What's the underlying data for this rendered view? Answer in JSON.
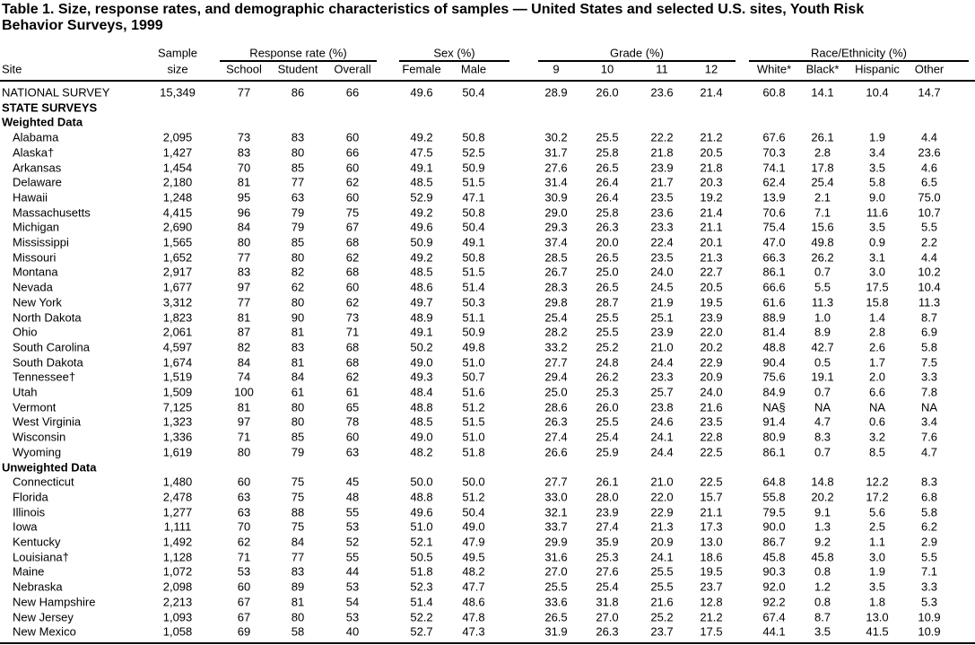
{
  "title": [
    "Table 1. Size, response rates, and demographic characteristics of samples — United States and selected U.S. sites, Youth Risk",
    "Behavior Surveys, 1999"
  ],
  "table": {
    "groups": [
      "Response rate (%)",
      "Sex (%)",
      "Grade (%)",
      "Race/Ethnicity (%)"
    ],
    "columns": [
      "Site",
      [
        "Sample",
        "size"
      ],
      "School",
      "Student",
      "Overall",
      "Female",
      "Male",
      "9",
      "10",
      "11",
      "12",
      "White*",
      "Black*",
      "Hispanic",
      "Other"
    ],
    "rows": [
      {
        "site": "NATIONAL SURVEY",
        "values": [
          "15,349",
          "77",
          "86",
          "66",
          "49.6",
          "50.4",
          "28.9",
          "26.0",
          "23.6",
          "21.4",
          "60.8",
          "14.1",
          "10.4",
          "14.7"
        ]
      },
      {
        "section": "STATE SURVEYS"
      },
      {
        "section": "Weighted Data"
      },
      {
        "site": "Alabama",
        "values": [
          "2,095",
          "73",
          "83",
          "60",
          "49.2",
          "50.8",
          "30.2",
          "25.5",
          "22.2",
          "21.2",
          "67.6",
          "26.1",
          "1.9",
          "4.4"
        ]
      },
      {
        "site": "Alaska†",
        "values": [
          "1,427",
          "83",
          "80",
          "66",
          "47.5",
          "52.5",
          "31.7",
          "25.8",
          "21.8",
          "20.5",
          "70.3",
          "2.8",
          "3.4",
          "23.6"
        ]
      },
      {
        "site": "Arkansas",
        "values": [
          "1,454",
          "70",
          "85",
          "60",
          "49.1",
          "50.9",
          "27.6",
          "26.5",
          "23.9",
          "21.8",
          "74.1",
          "17.8",
          "3.5",
          "4.6"
        ]
      },
      {
        "site": "Delaware",
        "values": [
          "2,180",
          "81",
          "77",
          "62",
          "48.5",
          "51.5",
          "31.4",
          "26.4",
          "21.7",
          "20.3",
          "62.4",
          "25.4",
          "5.8",
          "6.5"
        ]
      },
      {
        "site": "Hawaii",
        "values": [
          "1,248",
          "95",
          "63",
          "60",
          "52.9",
          "47.1",
          "30.9",
          "26.4",
          "23.5",
          "19.2",
          "13.9",
          "2.1",
          "9.0",
          "75.0"
        ]
      },
      {
        "site": "Massachusetts",
        "values": [
          "4,415",
          "96",
          "79",
          "75",
          "49.2",
          "50.8",
          "29.0",
          "25.8",
          "23.6",
          "21.4",
          "70.6",
          "7.1",
          "11.6",
          "10.7"
        ]
      },
      {
        "site": "Michigan",
        "values": [
          "2,690",
          "84",
          "79",
          "67",
          "49.6",
          "50.4",
          "29.3",
          "26.3",
          "23.3",
          "21.1",
          "75.4",
          "15.6",
          "3.5",
          "5.5"
        ]
      },
      {
        "site": "Mississippi",
        "values": [
          "1,565",
          "80",
          "85",
          "68",
          "50.9",
          "49.1",
          "37.4",
          "20.0",
          "22.4",
          "20.1",
          "47.0",
          "49.8",
          "0.9",
          "2.2"
        ]
      },
      {
        "site": "Missouri",
        "values": [
          "1,652",
          "77",
          "80",
          "62",
          "49.2",
          "50.8",
          "28.5",
          "26.5",
          "23.5",
          "21.3",
          "66.3",
          "26.2",
          "3.1",
          "4.4"
        ]
      },
      {
        "site": "Montana",
        "values": [
          "2,917",
          "83",
          "82",
          "68",
          "48.5",
          "51.5",
          "26.7",
          "25.0",
          "24.0",
          "22.7",
          "86.1",
          "0.7",
          "3.0",
          "10.2"
        ]
      },
      {
        "site": "Nevada",
        "values": [
          "1,677",
          "97",
          "62",
          "60",
          "48.6",
          "51.4",
          "28.3",
          "26.5",
          "24.5",
          "20.5",
          "66.6",
          "5.5",
          "17.5",
          "10.4"
        ]
      },
      {
        "site": "New York",
        "values": [
          "3,312",
          "77",
          "80",
          "62",
          "49.7",
          "50.3",
          "29.8",
          "28.7",
          "21.9",
          "19.5",
          "61.6",
          "11.3",
          "15.8",
          "11.3"
        ]
      },
      {
        "site": "North Dakota",
        "values": [
          "1,823",
          "81",
          "90",
          "73",
          "48.9",
          "51.1",
          "25.4",
          "25.5",
          "25.1",
          "23.9",
          "88.9",
          "1.0",
          "1.4",
          "8.7"
        ]
      },
      {
        "site": "Ohio",
        "values": [
          "2,061",
          "87",
          "81",
          "71",
          "49.1",
          "50.9",
          "28.2",
          "25.5",
          "23.9",
          "22.0",
          "81.4",
          "8.9",
          "2.8",
          "6.9"
        ]
      },
      {
        "site": "South Carolina",
        "values": [
          "4,597",
          "82",
          "83",
          "68",
          "50.2",
          "49.8",
          "33.2",
          "25.2",
          "21.0",
          "20.2",
          "48.8",
          "42.7",
          "2.6",
          "5.8"
        ]
      },
      {
        "site": "South Dakota",
        "values": [
          "1,674",
          "84",
          "81",
          "68",
          "49.0",
          "51.0",
          "27.7",
          "24.8",
          "24.4",
          "22.9",
          "90.4",
          "0.5",
          "1.7",
          "7.5"
        ]
      },
      {
        "site": "Tennessee†",
        "values": [
          "1,519",
          "74",
          "84",
          "62",
          "49.3",
          "50.7",
          "29.4",
          "26.2",
          "23.3",
          "20.9",
          "75.6",
          "19.1",
          "2.0",
          "3.3"
        ]
      },
      {
        "site": "Utah",
        "values": [
          "1,509",
          "100",
          "61",
          "61",
          "48.4",
          "51.6",
          "25.0",
          "25.3",
          "25.7",
          "24.0",
          "84.9",
          "0.7",
          "6.6",
          "7.8"
        ]
      },
      {
        "site": "Vermont",
        "values": [
          "7,125",
          "81",
          "80",
          "65",
          "48.8",
          "51.2",
          "28.6",
          "26.0",
          "23.8",
          "21.6",
          "NA§",
          "NA",
          "NA",
          "NA"
        ]
      },
      {
        "site": "West Virginia",
        "values": [
          "1,323",
          "97",
          "80",
          "78",
          "48.5",
          "51.5",
          "26.3",
          "25.5",
          "24.6",
          "23.5",
          "91.4",
          "4.7",
          "0.6",
          "3.4"
        ]
      },
      {
        "site": "Wisconsin",
        "values": [
          "1,336",
          "71",
          "85",
          "60",
          "49.0",
          "51.0",
          "27.4",
          "25.4",
          "24.1",
          "22.8",
          "80.9",
          "8.3",
          "3.2",
          "7.6"
        ]
      },
      {
        "site": "Wyoming",
        "values": [
          "1,619",
          "80",
          "79",
          "63",
          "48.2",
          "51.8",
          "26.6",
          "25.9",
          "24.4",
          "22.5",
          "86.1",
          "0.7",
          "8.5",
          "4.7"
        ]
      },
      {
        "section": "Unweighted Data"
      },
      {
        "site": "Connecticut",
        "values": [
          "1,480",
          "60",
          "75",
          "45",
          "50.0",
          "50.0",
          "27.7",
          "26.1",
          "21.0",
          "22.5",
          "64.8",
          "14.8",
          "12.2",
          "8.3"
        ]
      },
      {
        "site": "Florida",
        "values": [
          "2,478",
          "63",
          "75",
          "48",
          "48.8",
          "51.2",
          "33.0",
          "28.0",
          "22.0",
          "15.7",
          "55.8",
          "20.2",
          "17.2",
          "6.8"
        ]
      },
      {
        "site": "Illinois",
        "values": [
          "1,277",
          "63",
          "88",
          "55",
          "49.6",
          "50.4",
          "32.1",
          "23.9",
          "22.9",
          "21.1",
          "79.5",
          "9.1",
          "5.6",
          "5.8"
        ]
      },
      {
        "site": "Iowa",
        "values": [
          "1,111",
          "70",
          "75",
          "53",
          "51.0",
          "49.0",
          "33.7",
          "27.4",
          "21.3",
          "17.3",
          "90.0",
          "1.3",
          "2.5",
          "6.2"
        ]
      },
      {
        "site": "Kentucky",
        "values": [
          "1,492",
          "62",
          "84",
          "52",
          "52.1",
          "47.9",
          "29.9",
          "35.9",
          "20.9",
          "13.0",
          "86.7",
          "9.2",
          "1.1",
          "2.9"
        ]
      },
      {
        "site": "Louisiana†",
        "values": [
          "1,128",
          "71",
          "77",
          "55",
          "50.5",
          "49.5",
          "31.6",
          "25.3",
          "24.1",
          "18.6",
          "45.8",
          "45.8",
          "3.0",
          "5.5"
        ]
      },
      {
        "site": "Maine",
        "values": [
          "1,072",
          "53",
          "83",
          "44",
          "51.8",
          "48.2",
          "27.0",
          "27.6",
          "25.5",
          "19.5",
          "90.3",
          "0.8",
          "1.9",
          "7.1"
        ]
      },
      {
        "site": "Nebraska",
        "values": [
          "2,098",
          "60",
          "89",
          "53",
          "52.3",
          "47.7",
          "25.5",
          "25.4",
          "25.5",
          "23.7",
          "92.0",
          "1.2",
          "3.5",
          "3.3"
        ]
      },
      {
        "site": "New Hampshire",
        "values": [
          "2,213",
          "67",
          "81",
          "54",
          "51.4",
          "48.6",
          "33.6",
          "31.8",
          "21.6",
          "12.8",
          "92.2",
          "0.8",
          "1.8",
          "5.3"
        ]
      },
      {
        "site": "New Jersey",
        "values": [
          "1,093",
          "67",
          "80",
          "53",
          "52.2",
          "47.8",
          "26.5",
          "27.0",
          "25.2",
          "21.2",
          "67.4",
          "8.7",
          "13.0",
          "10.9"
        ]
      },
      {
        "site": "New Mexico",
        "values": [
          "1,058",
          "69",
          "58",
          "40",
          "52.7",
          "47.3",
          "31.9",
          "26.3",
          "23.7",
          "17.5",
          "44.1",
          "3.5",
          "41.5",
          "10.9"
        ]
      }
    ]
  }
}
